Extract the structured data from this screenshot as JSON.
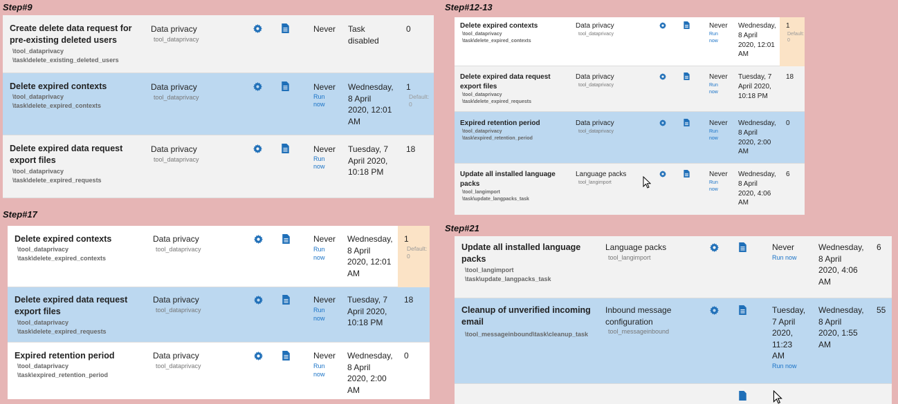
{
  "steps": {
    "s9": "Step#9",
    "s1213": "Step#12-13",
    "s17": "Step#17",
    "s21": "Step#21"
  },
  "labels": {
    "never": "Never",
    "run_now": "Run now",
    "default_prefix": "Default:"
  },
  "icons": {
    "settings": "gear-icon",
    "log": "document-icon",
    "pointer": "mouse-pointer-icon"
  },
  "colors": {
    "background": "#e6b5b5",
    "highlight": "#bcd8f0",
    "link": "#1a73c7",
    "warning": "#fbe3c6"
  },
  "step9": {
    "rows": [
      {
        "name": [
          "Create delete data request for",
          "pre-existing deleted users"
        ],
        "path": [
          "\\tool_dataprivacy",
          "\\task\\delete_existing_deleted_users"
        ],
        "component": "Data privacy",
        "component_sub": "tool_dataprivacy",
        "last_run": "Never",
        "next_run": [
          "Task",
          "disabled"
        ],
        "fail": "0"
      },
      {
        "name": [
          "Delete expired contexts"
        ],
        "path": [
          "\\tool_dataprivacy",
          "\\task\\delete_expired_contexts"
        ],
        "component": "Data privacy",
        "component_sub": "tool_dataprivacy",
        "last_run": "Never",
        "next_run": [
          "Wednesday,",
          "8 April",
          "2020, 12:01",
          "AM"
        ],
        "fail": "1",
        "fail_default": "Default:",
        "fail_default_val": "0"
      },
      {
        "name": [
          "Delete expired data request",
          "export files"
        ],
        "path": [
          "\\tool_dataprivacy",
          "\\task\\delete_expired_requests"
        ],
        "component": "Data privacy",
        "component_sub": "tool_dataprivacy",
        "last_run": "Never",
        "next_run": [
          "Tuesday, 7",
          "April 2020,",
          "10:18 PM"
        ],
        "fail": "18"
      }
    ]
  },
  "step1213": {
    "rows": [
      {
        "name": [
          "Delete expired contexts"
        ],
        "path": [
          "\\tool_dataprivacy",
          "\\task\\delete_expired_contexts"
        ],
        "component": "Data privacy",
        "component_sub": "tool_dataprivacy",
        "last_run": "Never",
        "next_run": [
          "Wednesday,",
          "8 April",
          "2020, 12:01",
          "AM"
        ],
        "fail": "1",
        "fail_default": "Default:",
        "fail_default_val": "0"
      },
      {
        "name": [
          "Delete expired data request",
          "export files"
        ],
        "path": [
          "\\tool_dataprivacy",
          "\\task\\delete_expired_requests"
        ],
        "component": "Data privacy",
        "component_sub": "tool_dataprivacy",
        "last_run": "Never",
        "next_run": [
          "Tuesday, 7",
          "April 2020,",
          "10:18 PM"
        ],
        "fail": "18"
      },
      {
        "name": [
          "Expired retention period"
        ],
        "path": [
          "\\tool_dataprivacy",
          "\\task\\expired_retention_period"
        ],
        "component": "Data privacy",
        "component_sub": "tool_dataprivacy",
        "last_run": "Never",
        "next_run": [
          "Wednesday,",
          "8 April",
          "2020, 2:00",
          "AM"
        ],
        "fail": "0"
      },
      {
        "name": [
          "Update all installed language",
          "packs"
        ],
        "path": [
          "\\tool_langimport",
          "\\task\\update_langpacks_task"
        ],
        "component": "Language packs",
        "component_sub": "tool_langimport",
        "last_run": "Never",
        "next_run": [
          "Wednesday,",
          "8 April",
          "2020, 4:06",
          "AM"
        ],
        "fail": "6"
      }
    ]
  },
  "step17": {
    "rows": [
      {
        "name": [
          "Delete expired contexts"
        ],
        "path": [
          "\\tool_dataprivacy",
          "\\task\\delete_expired_contexts"
        ],
        "component": "Data privacy",
        "component_sub": "tool_dataprivacy",
        "last_run": "Never",
        "next_run": [
          "Wednesday,",
          "8 April",
          "2020, 12:01",
          "AM"
        ],
        "fail": "1",
        "fail_default": "Default:",
        "fail_default_val": "0"
      },
      {
        "name": [
          "Delete expired data request",
          "export files"
        ],
        "path": [
          "\\tool_dataprivacy",
          "\\task\\delete_expired_requests"
        ],
        "component": "Data privacy",
        "component_sub": "tool_dataprivacy",
        "last_run": "Never",
        "next_run": [
          "Tuesday, 7",
          "April 2020,",
          "10:18 PM"
        ],
        "fail": "18"
      },
      {
        "name": [
          "Expired retention period"
        ],
        "path": [
          "\\tool_dataprivacy",
          "\\task\\expired_retention_period"
        ],
        "component": "Data privacy",
        "component_sub": "tool_dataprivacy",
        "last_run": "Never",
        "next_run": [
          "Wednesday,",
          "8 April",
          "2020, 2:00",
          "AM"
        ],
        "fail": "0"
      }
    ]
  },
  "step21": {
    "rows": [
      {
        "name": [
          "Update all installed language",
          "packs"
        ],
        "path": [
          "\\tool_langimport",
          "\\task\\update_langpacks_task"
        ],
        "component": [
          "Language packs"
        ],
        "component_sub": "tool_langimport",
        "last_run": [
          "Never"
        ],
        "next_run": [
          "Wednesday,",
          "8 April",
          "2020, 4:06",
          "AM"
        ],
        "fail": "6"
      },
      {
        "name": [
          "Cleanup of unverified incoming",
          "email"
        ],
        "path": [
          "\\tool_messageinbound\\task\\cleanup_task"
        ],
        "component": [
          "Inbound message",
          "configuration"
        ],
        "component_sub": "tool_messageinbound",
        "last_run": [
          "Tuesday,",
          "7 April",
          "2020,",
          "11:23",
          "AM"
        ],
        "next_run": [
          "Wednesday,",
          "8 April",
          "2020, 1:55",
          "AM"
        ],
        "fail": "55"
      }
    ]
  }
}
